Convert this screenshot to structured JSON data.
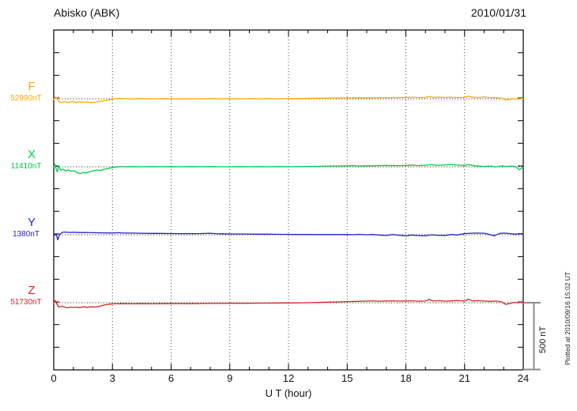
{
  "chart_data": {
    "type": "line",
    "title": "Abisko (ABK)",
    "date": "2010/01/31",
    "xlabel": "U T (hour)",
    "x_range": [
      0,
      24
    ],
    "x_major_ticks": [
      0,
      3,
      6,
      9,
      12,
      15,
      18,
      21,
      24
    ],
    "minor_tick_every_hours": 1,
    "grid": "dotted vertical lines at each 3-hour major tick; dotted horizontal baseline per trace",
    "legend_position": "left margin (trace letter + base value)",
    "y_units": "nT (offset from each trace base value)",
    "trace_separation_nT": 500,
    "scale_bar_nT": 500,
    "annotations": {
      "scale_bar_label": "500 nT",
      "plotted_note": "Plotted at 2010/09/16 15:02 UT"
    },
    "series": [
      {
        "name": "F",
        "base_label": "52990nT",
        "color": "#FFAA00",
        "points": [
          [
            0,
            -5
          ],
          [
            0.08,
            14
          ],
          [
            0.15,
            5
          ],
          [
            0.25,
            -20
          ],
          [
            0.4,
            -28
          ],
          [
            0.55,
            -20
          ],
          [
            0.7,
            -28
          ],
          [
            0.85,
            -24
          ],
          [
            1,
            -20
          ],
          [
            1.15,
            -26
          ],
          [
            1.3,
            -22
          ],
          [
            1.5,
            -26
          ],
          [
            1.7,
            -24
          ],
          [
            1.9,
            -28
          ],
          [
            2.1,
            -26
          ],
          [
            2.3,
            -20
          ],
          [
            2.5,
            -16
          ],
          [
            2.7,
            -12
          ],
          [
            2.9,
            -6
          ],
          [
            3.1,
            0
          ],
          [
            3.3,
            3
          ],
          [
            3.5,
            1
          ],
          [
            4,
            0
          ],
          [
            4.5,
            1
          ],
          [
            5,
            0
          ],
          [
            5.5,
            1
          ],
          [
            6,
            0
          ],
          [
            6.5,
            -1
          ],
          [
            7,
            1
          ],
          [
            7.5,
            0
          ],
          [
            8,
            1
          ],
          [
            8.5,
            0
          ],
          [
            9,
            1
          ],
          [
            9.5,
            0
          ],
          [
            10,
            1
          ],
          [
            10.5,
            0
          ],
          [
            11,
            1
          ],
          [
            11.5,
            0
          ],
          [
            12,
            1
          ],
          [
            12.5,
            2
          ],
          [
            13,
            3
          ],
          [
            13.5,
            4
          ],
          [
            14,
            5
          ],
          [
            14.5,
            6
          ],
          [
            15,
            6
          ],
          [
            15.5,
            7
          ],
          [
            16,
            7
          ],
          [
            16.5,
            8
          ],
          [
            17,
            8
          ],
          [
            17.5,
            9
          ],
          [
            18,
            10
          ],
          [
            18.3,
            12
          ],
          [
            18.6,
            9
          ],
          [
            19,
            10
          ],
          [
            19.2,
            18
          ],
          [
            19.4,
            10
          ],
          [
            19.7,
            13
          ],
          [
            20,
            9
          ],
          [
            20.3,
            12
          ],
          [
            20.6,
            9
          ],
          [
            21,
            11
          ],
          [
            21.2,
            20
          ],
          [
            21.4,
            12
          ],
          [
            21.7,
            9
          ],
          [
            22,
            14
          ],
          [
            22.3,
            9
          ],
          [
            22.6,
            8
          ],
          [
            22.9,
            5
          ],
          [
            23.1,
            -8
          ],
          [
            23.3,
            -4
          ],
          [
            23.5,
            2
          ],
          [
            23.7,
            -2
          ],
          [
            23.85,
            1
          ],
          [
            24,
            2
          ]
        ]
      },
      {
        "name": "X",
        "base_label": "11410nT",
        "color": "#00CC44",
        "points": [
          [
            0,
            0
          ],
          [
            0.05,
            22
          ],
          [
            0.1,
            -8
          ],
          [
            0.18,
            -38
          ],
          [
            0.25,
            8
          ],
          [
            0.35,
            -25
          ],
          [
            0.5,
            -18
          ],
          [
            0.6,
            -30
          ],
          [
            0.75,
            -24
          ],
          [
            0.9,
            -34
          ],
          [
            1.05,
            -30
          ],
          [
            1.2,
            -44
          ],
          [
            1.35,
            -50
          ],
          [
            1.5,
            -42
          ],
          [
            1.65,
            -46
          ],
          [
            1.8,
            -38
          ],
          [
            2,
            -30
          ],
          [
            2.2,
            -24
          ],
          [
            2.4,
            -27
          ],
          [
            2.6,
            -18
          ],
          [
            2.8,
            -12
          ],
          [
            3,
            -6
          ],
          [
            3.2,
            -2
          ],
          [
            3.4,
            2
          ],
          [
            3.6,
            0
          ],
          [
            4,
            1
          ],
          [
            4.5,
            0
          ],
          [
            5,
            1
          ],
          [
            5.5,
            0
          ],
          [
            6,
            1
          ],
          [
            6.5,
            0
          ],
          [
            7,
            1
          ],
          [
            7.5,
            0
          ],
          [
            8,
            1
          ],
          [
            8.5,
            0
          ],
          [
            9,
            0
          ],
          [
            9.5,
            1
          ],
          [
            10,
            0
          ],
          [
            10.5,
            1
          ],
          [
            11,
            0
          ],
          [
            11.5,
            1
          ],
          [
            12,
            0
          ],
          [
            12.5,
            1
          ],
          [
            13,
            2
          ],
          [
            13.5,
            3
          ],
          [
            14,
            5
          ],
          [
            14.5,
            6
          ],
          [
            15,
            7
          ],
          [
            15.3,
            9
          ],
          [
            15.6,
            6
          ],
          [
            16,
            7
          ],
          [
            16.5,
            8
          ],
          [
            17,
            10
          ],
          [
            17.5,
            8
          ],
          [
            18,
            10
          ],
          [
            18.3,
            13
          ],
          [
            18.6,
            9
          ],
          [
            19,
            11
          ],
          [
            19.3,
            15
          ],
          [
            19.6,
            11
          ],
          [
            20,
            14
          ],
          [
            20.3,
            17
          ],
          [
            20.6,
            12
          ],
          [
            21,
            10
          ],
          [
            21.2,
            16
          ],
          [
            21.5,
            8
          ],
          [
            21.8,
            4
          ],
          [
            22,
            2
          ],
          [
            22.3,
            6
          ],
          [
            22.6,
            -2
          ],
          [
            22.9,
            7
          ],
          [
            23.1,
            2
          ],
          [
            23.4,
            5
          ],
          [
            23.6,
            1
          ],
          [
            23.8,
            -22
          ],
          [
            23.9,
            -12
          ],
          [
            24,
            -4
          ]
        ]
      },
      {
        "name": "Y",
        "base_label": "1380nT",
        "color": "#2222CC",
        "points": [
          [
            0,
            6
          ],
          [
            0.07,
            -4
          ],
          [
            0.13,
            8
          ],
          [
            0.2,
            -38
          ],
          [
            0.3,
            2
          ],
          [
            0.45,
            18
          ],
          [
            0.6,
            20
          ],
          [
            0.8,
            17
          ],
          [
            1,
            18
          ],
          [
            1.3,
            16
          ],
          [
            1.6,
            17
          ],
          [
            2,
            15
          ],
          [
            2.5,
            14
          ],
          [
            3,
            13
          ],
          [
            3.3,
            15
          ],
          [
            3.6,
            12
          ],
          [
            4,
            12
          ],
          [
            4.5,
            11
          ],
          [
            5,
            10
          ],
          [
            5.5,
            10
          ],
          [
            6,
            9
          ],
          [
            6.5,
            8
          ],
          [
            7,
            8
          ],
          [
            7.5,
            9
          ],
          [
            8,
            11
          ],
          [
            8.3,
            8
          ],
          [
            8.6,
            7
          ],
          [
            9,
            6
          ],
          [
            9.5,
            5
          ],
          [
            10,
            5
          ],
          [
            10.5,
            4
          ],
          [
            11,
            4
          ],
          [
            11.5,
            3
          ],
          [
            12,
            3
          ],
          [
            12.5,
            2
          ],
          [
            13,
            2
          ],
          [
            13.5,
            1
          ],
          [
            14,
            2
          ],
          [
            14.5,
            1
          ],
          [
            15,
            2
          ],
          [
            15.3,
            0
          ],
          [
            15.6,
            3
          ],
          [
            16,
            0
          ],
          [
            16.3,
            2
          ],
          [
            16.6,
            -2
          ],
          [
            17,
            -6
          ],
          [
            17.3,
            2
          ],
          [
            17.6,
            -3
          ],
          [
            18,
            -9
          ],
          [
            18.3,
            -2
          ],
          [
            18.6,
            -6
          ],
          [
            19,
            -8
          ],
          [
            19.3,
            0
          ],
          [
            19.6,
            -4
          ],
          [
            20,
            -6
          ],
          [
            20.3,
            2
          ],
          [
            20.6,
            -2
          ],
          [
            21,
            8
          ],
          [
            21.3,
            11
          ],
          [
            21.6,
            12
          ],
          [
            22,
            11
          ],
          [
            22.2,
            4
          ],
          [
            22.5,
            -8
          ],
          [
            22.8,
            10
          ],
          [
            23,
            12
          ],
          [
            23.3,
            9
          ],
          [
            23.6,
            4
          ],
          [
            23.8,
            8
          ],
          [
            24,
            7
          ]
        ]
      },
      {
        "name": "Z",
        "base_label": "51730nT",
        "color": "#DD2222",
        "points": [
          [
            0,
            -2
          ],
          [
            0.08,
            16
          ],
          [
            0.15,
            -6
          ],
          [
            0.25,
            -32
          ],
          [
            0.4,
            -26
          ],
          [
            0.55,
            -32
          ],
          [
            0.7,
            -38
          ],
          [
            0.85,
            -32
          ],
          [
            1,
            -35
          ],
          [
            1.15,
            -32
          ],
          [
            1.3,
            -36
          ],
          [
            1.5,
            -30
          ],
          [
            1.7,
            -34
          ],
          [
            1.9,
            -30
          ],
          [
            2.1,
            -32
          ],
          [
            2.3,
            -28
          ],
          [
            2.5,
            -20
          ],
          [
            2.7,
            -14
          ],
          [
            2.9,
            -10
          ],
          [
            3.1,
            -8
          ],
          [
            3.5,
            -7
          ],
          [
            4,
            -8
          ],
          [
            4.5,
            -7
          ],
          [
            5,
            -8
          ],
          [
            5.5,
            -7
          ],
          [
            6,
            -7
          ],
          [
            6.5,
            -6
          ],
          [
            7,
            -7
          ],
          [
            7.5,
            -6
          ],
          [
            8,
            -5
          ],
          [
            8.5,
            -5
          ],
          [
            9,
            -4
          ],
          [
            9.5,
            -4
          ],
          [
            10,
            -4
          ],
          [
            10.5,
            -3
          ],
          [
            11,
            -3
          ],
          [
            11.5,
            -2
          ],
          [
            12,
            -2
          ],
          [
            12.5,
            -1
          ],
          [
            13,
            0
          ],
          [
            13.5,
            2
          ],
          [
            14,
            4
          ],
          [
            14.5,
            6
          ],
          [
            15,
            8
          ],
          [
            15.5,
            10
          ],
          [
            16,
            12
          ],
          [
            16.3,
            14
          ],
          [
            16.6,
            11
          ],
          [
            17,
            13
          ],
          [
            17.3,
            14
          ],
          [
            17.6,
            12
          ],
          [
            18,
            13
          ],
          [
            18.3,
            14
          ],
          [
            18.6,
            11
          ],
          [
            19,
            12
          ],
          [
            19.2,
            24
          ],
          [
            19.4,
            12
          ],
          [
            19.7,
            15
          ],
          [
            20,
            11
          ],
          [
            20.3,
            13
          ],
          [
            20.6,
            17
          ],
          [
            21,
            12
          ],
          [
            21.2,
            27
          ],
          [
            21.4,
            13
          ],
          [
            21.7,
            15
          ],
          [
            22,
            12
          ],
          [
            22.3,
            10
          ],
          [
            22.6,
            12
          ],
          [
            22.9,
            6
          ],
          [
            23.1,
            -12
          ],
          [
            23.3,
            -6
          ],
          [
            23.5,
            2
          ],
          [
            23.7,
            0
          ],
          [
            23.85,
            3
          ],
          [
            24,
            3
          ]
        ]
      }
    ]
  }
}
